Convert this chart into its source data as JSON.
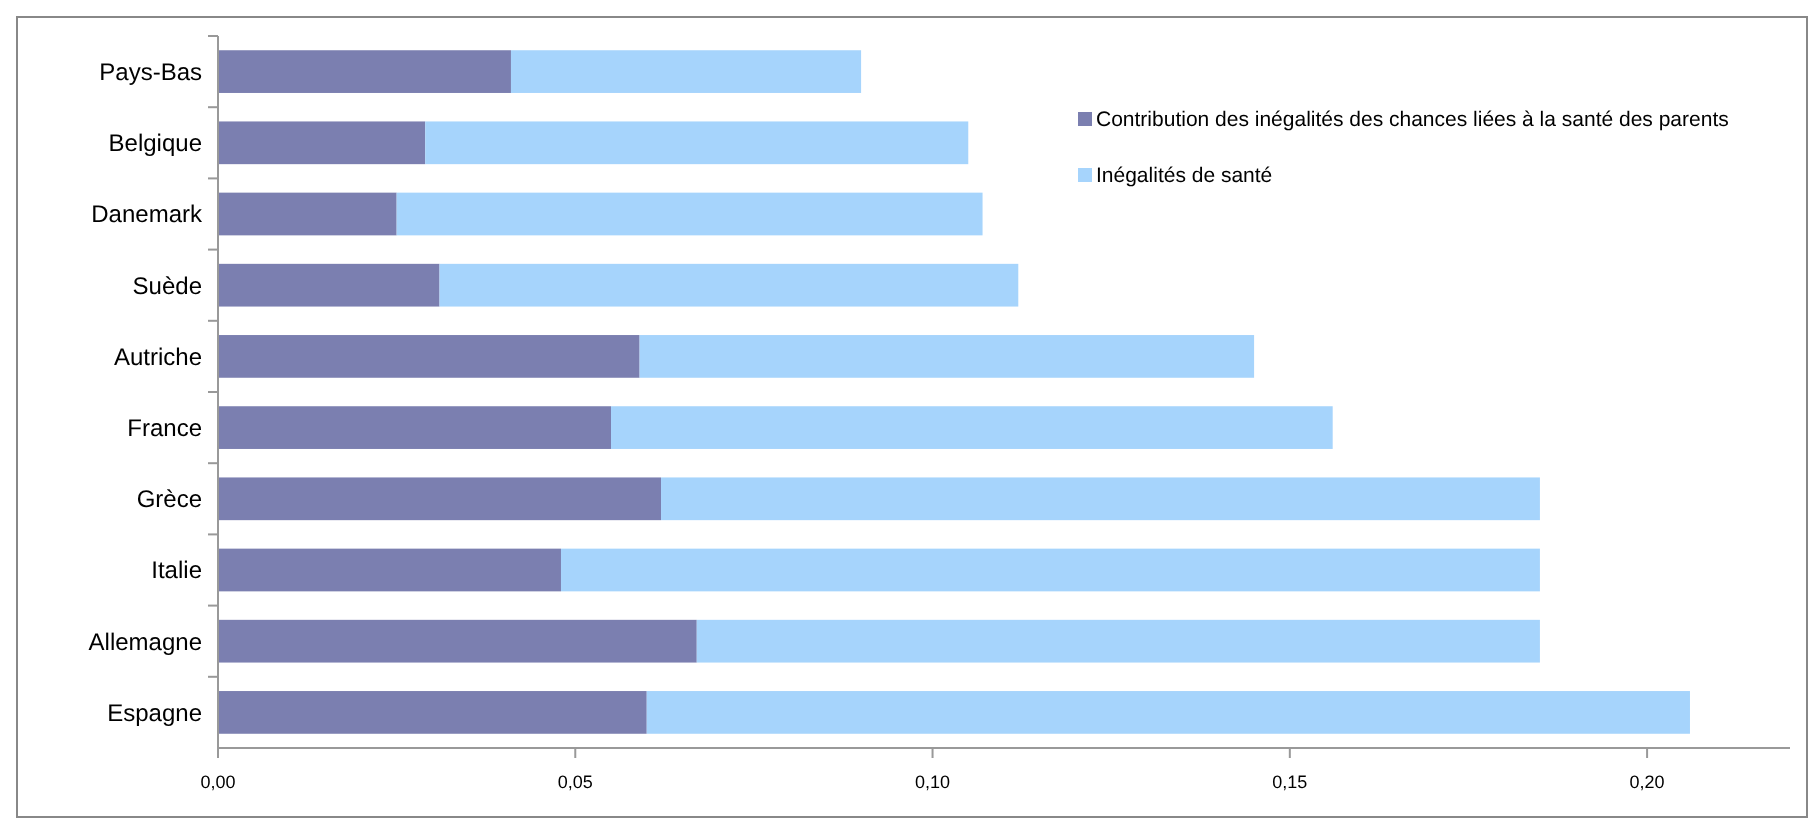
{
  "chart_data": {
    "type": "bar",
    "orientation": "horizontal",
    "stacked": true,
    "categories": [
      "Pays-Bas",
      "Belgique",
      "Danemark",
      "Suède",
      "Autriche",
      "France",
      "Grèce",
      "Italie",
      "Allemagne",
      "Espagne"
    ],
    "series": [
      {
        "name": "Contribution des inégalités des chances liées à la santé des parents",
        "color": "#7b7fb0",
        "values": [
          0.041,
          0.029,
          0.025,
          0.031,
          0.059,
          0.055,
          0.062,
          0.048,
          0.067,
          0.06
        ]
      },
      {
        "name": "Inégalités de santé",
        "color": "#a6d4fc",
        "values": [
          0.049,
          0.076,
          0.082,
          0.081,
          0.086,
          0.101,
          0.123,
          0.137,
          0.118,
          0.146
        ]
      }
    ],
    "xlim": [
      0,
      0.22
    ],
    "xticks": [
      {
        "value": 0,
        "label": "0,00"
      },
      {
        "value": 0.05,
        "label": "0,05"
      },
      {
        "value": 0.1,
        "label": "0,10"
      },
      {
        "value": 0.15,
        "label": "0,15"
      },
      {
        "value": 0.2,
        "label": "0,20"
      }
    ],
    "grid": false,
    "legend": "top right"
  }
}
